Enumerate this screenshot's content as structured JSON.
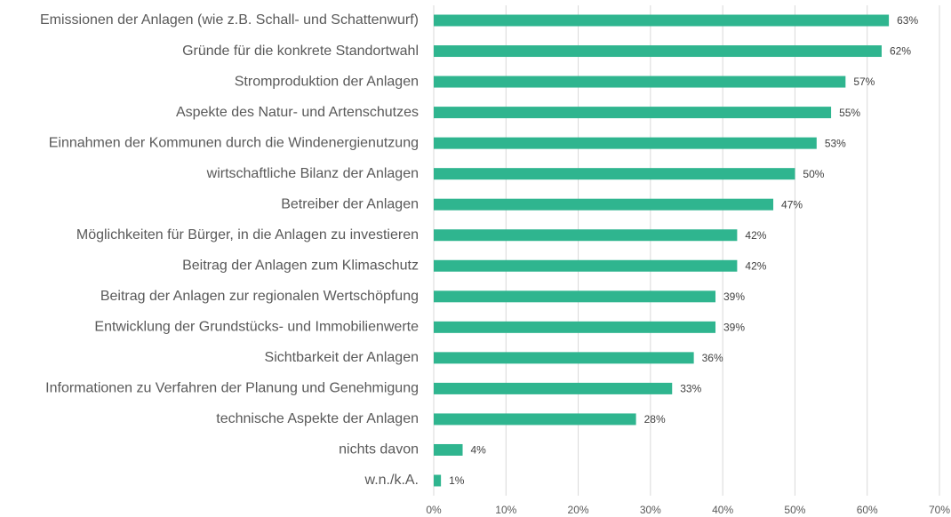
{
  "chart_data": {
    "type": "barh",
    "categories": [
      "Emissionen der Anlagen (wie z.B. Schall- und Schattenwurf)",
      "Gründe für die konkrete Standortwahl",
      "Stromproduktion der Anlagen",
      "Aspekte des Natur- und Artenschutzes",
      "Einnahmen der Kommunen durch die Windenergienutzung",
      "wirtschaftliche Bilanz der Anlagen",
      "Betreiber der Anlagen",
      "Möglichkeiten für Bürger, in die Anlagen zu investieren",
      "Beitrag der Anlagen zum Klimaschutz",
      "Beitrag der Anlagen zur regionalen Wertschöpfung",
      "Entwicklung der Grundstücks- und Immobilienwerte",
      "Sichtbarkeit der Anlagen",
      "Informationen zu Verfahren der Planung und Genehmigung",
      "technische Aspekte der Anlagen",
      "nichts davon",
      "w.n./k.A."
    ],
    "values": [
      63,
      62,
      57,
      55,
      53,
      50,
      47,
      42,
      42,
      39,
      39,
      36,
      33,
      28,
      4,
      1
    ],
    "value_labels": [
      "63%",
      "62%",
      "57%",
      "55%",
      "53%",
      "50%",
      "47%",
      "42%",
      "42%",
      "39%",
      "39%",
      "36%",
      "33%",
      "28%",
      "4%",
      "1%"
    ],
    "color": "#2fb58f",
    "xlim": [
      0,
      70
    ],
    "xticks": [
      {
        "value": 0,
        "label": "0%"
      },
      {
        "value": 10,
        "label": "10%"
      },
      {
        "value": 20,
        "label": "20%"
      },
      {
        "value": 30,
        "label": "30%"
      },
      {
        "value": 40,
        "label": "40%"
      },
      {
        "value": 50,
        "label": "50%"
      },
      {
        "value": 60,
        "label": "60%"
      },
      {
        "value": 70,
        "label": "70%"
      }
    ],
    "grid": true
  }
}
